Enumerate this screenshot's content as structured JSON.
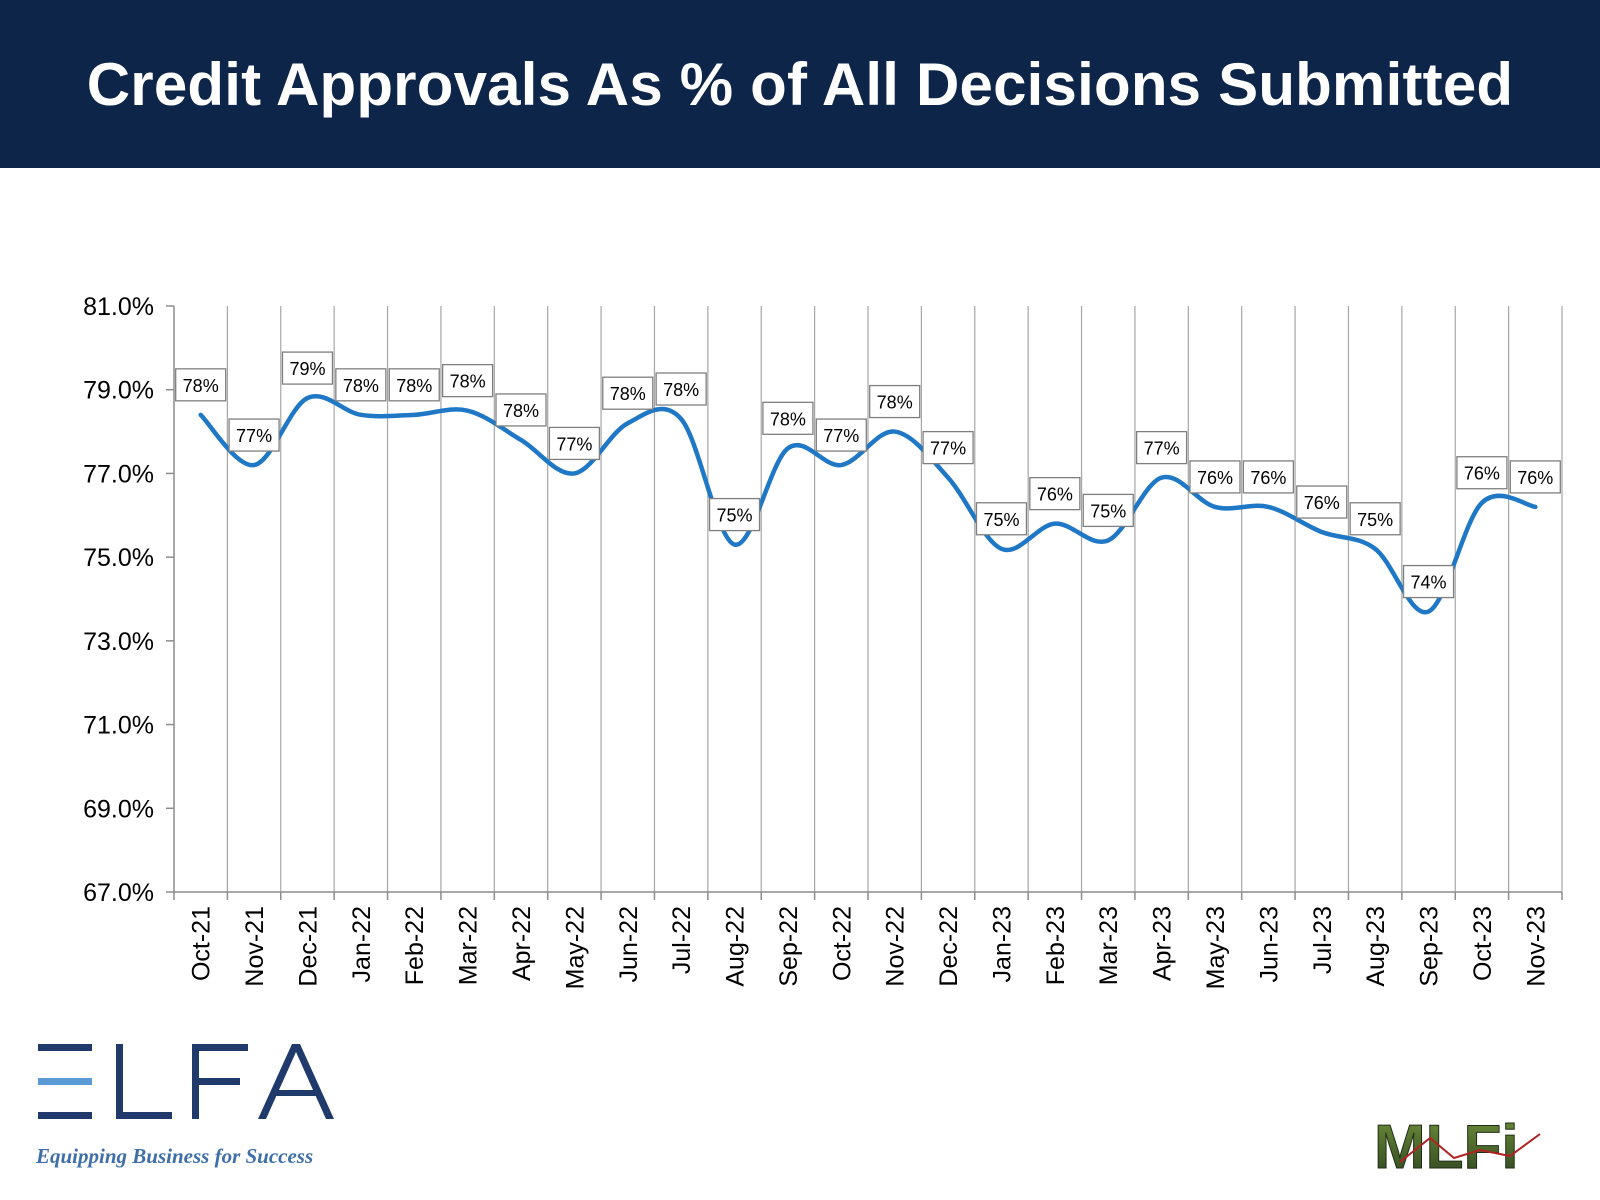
{
  "header": {
    "title": "Credit Approvals As % of All Decisions Submitted"
  },
  "colors": {
    "header_bg": "#0d2548",
    "line": "#1f78c6",
    "grid": "#a6a6a6",
    "elfa_blue": "#1f3a6b",
    "elfa_accent": "#5b9bd5",
    "mlfi_green": "#3c5a28"
  },
  "chart_data": {
    "type": "line",
    "title": "Credit Approvals As % of All Decisions Submitted",
    "xlabel": "",
    "ylabel": "",
    "ylim": [
      67.0,
      81.0
    ],
    "yticks": [
      "67.0%",
      "69.0%",
      "71.0%",
      "73.0%",
      "75.0%",
      "77.0%",
      "79.0%",
      "81.0%"
    ],
    "grid": "vertical",
    "legend": "none",
    "categories": [
      "Oct-21",
      "Nov-21",
      "Dec-21",
      "Jan-22",
      "Feb-22",
      "Mar-22",
      "Apr-22",
      "May-22",
      "Jun-22",
      "Jul-22",
      "Aug-22",
      "Sep-22",
      "Oct-22",
      "Nov-22",
      "Dec-22",
      "Jan-23",
      "Feb-23",
      "Mar-23",
      "Apr-23",
      "May-23",
      "Jun-23",
      "Jul-23",
      "Aug-23",
      "Sep-23",
      "Oct-23",
      "Nov-23"
    ],
    "values": [
      78.4,
      77.2,
      78.8,
      78.4,
      78.4,
      78.5,
      77.8,
      77.0,
      78.2,
      78.3,
      75.3,
      77.6,
      77.2,
      78.0,
      76.9,
      75.2,
      75.8,
      75.4,
      76.9,
      76.2,
      76.2,
      75.6,
      75.2,
      73.7,
      76.3,
      76.2
    ],
    "data_labels": [
      "78%",
      "77%",
      "79%",
      "78%",
      "78%",
      "78%",
      "78%",
      "77%",
      "78%",
      "78%",
      "75%",
      "78%",
      "77%",
      "78%",
      "77%",
      "75%",
      "76%",
      "75%",
      "77%",
      "76%",
      "76%",
      "76%",
      "75%",
      "74%",
      "76%",
      "76%"
    ]
  },
  "logos": {
    "elfa": {
      "text": "ELFA",
      "tagline": "Equipping Business for Success"
    },
    "mlfi": {
      "text": "MLFi"
    }
  }
}
